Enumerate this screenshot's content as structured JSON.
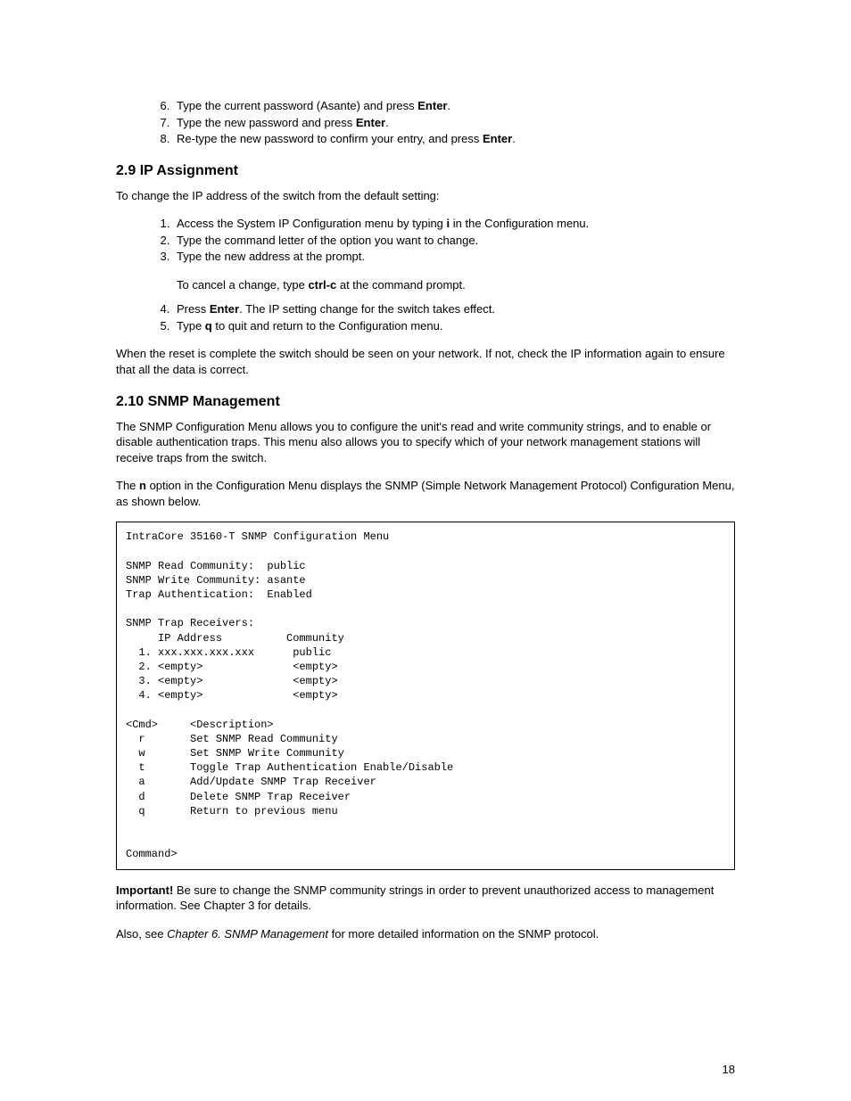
{
  "steps_top": [
    {
      "n": "6.",
      "pre": "Type the current password (Asante) and press ",
      "bold": "Enter",
      "post": "."
    },
    {
      "n": "7.",
      "pre": "Type the new password and press ",
      "bold": "Enter",
      "post": "."
    },
    {
      "n": "8.",
      "pre": "Re-type the new password to confirm your entry, and press ",
      "bold": "Enter",
      "post": "."
    }
  ],
  "section1": {
    "heading": "2.9 IP Assignment",
    "intro": "To change the IP address of the switch from the default setting:",
    "steps_a": [
      {
        "n": "1.",
        "pre": "Access the System IP Configuration menu by typing ",
        "bold": "i",
        "post": " in the Configuration menu."
      },
      {
        "n": "2.",
        "pre": "Type the command letter of the option you want to change.",
        "bold": "",
        "post": ""
      },
      {
        "n": "3.",
        "pre": "Type the new address at the prompt.",
        "bold": "",
        "post": ""
      }
    ],
    "note_pre": "To cancel a change, type ",
    "note_bold": "ctrl-c",
    "note_post": " at the command prompt.",
    "steps_b": [
      {
        "n": "4.",
        "pre": "Press ",
        "bold": "Enter",
        "post": ". The IP setting change for the switch takes effect."
      },
      {
        "n": "5.",
        "pre": "Type ",
        "bold": "q",
        "post": " to quit and return to the Configuration menu."
      }
    ],
    "outro": "When the reset is complete the switch should be seen on your network. If not, check the IP information again to ensure that all the data is correct."
  },
  "section2": {
    "heading": "2.10 SNMP Management",
    "p1": "The SNMP Configuration Menu allows you to configure the unit's read and write community strings, and to enable or disable authentication traps. This menu also allows you to specify which of your network management stations will receive traps from the switch.",
    "p2_pre": "The ",
    "p2_bold": "n",
    "p2_post": " option in the Configuration Menu displays the SNMP (Simple Network Management Protocol) Configuration Menu, as shown below.",
    "terminal": "IntraCore 35160-T SNMP Configuration Menu\n\nSNMP Read Community:  public\nSNMP Write Community: asante\nTrap Authentication:  Enabled\n\nSNMP Trap Receivers:\n     IP Address          Community\n  1. xxx.xxx.xxx.xxx      public\n  2. <empty>              <empty>\n  3. <empty>              <empty>\n  4. <empty>              <empty>\n\n<Cmd>     <Description>\n  r       Set SNMP Read Community\n  w       Set SNMP Write Community\n  t       Toggle Trap Authentication Enable/Disable\n  a       Add/Update SNMP Trap Receiver\n  d       Delete SNMP Trap Receiver\n  q       Return to previous menu\n\n\nCommand>",
    "important_bold": "Important!",
    "important_rest": " Be sure to change the SNMP community strings in order to prevent unauthorized access to management information. See Chapter 3 for details.",
    "also_pre": "Also, see ",
    "also_italic": "Chapter 6. SNMP Management",
    "also_post": " for more detailed information on the SNMP protocol."
  },
  "page_number": "18"
}
